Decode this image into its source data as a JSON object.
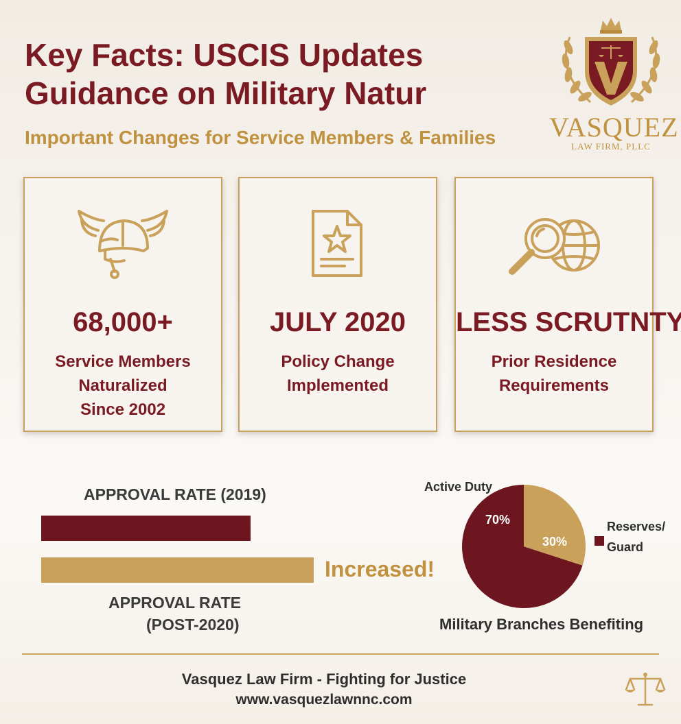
{
  "header": {
    "title_line1": "Key Facts: USCIS Updates",
    "title_line2": "Guidance on Military Natur",
    "subtitle": "Important Changes for Service Members & Families"
  },
  "logo": {
    "name": "VASQUEZ",
    "tagline": "LAW FIRM, PLLC"
  },
  "cards": [
    {
      "icon": "military-helmet-icon",
      "stat": "68,000+",
      "desc": [
        "Service Members",
        "Naturalized",
        "Since 2002"
      ]
    },
    {
      "icon": "document-star-icon",
      "stat": "JULY 2020",
      "desc": [
        "Policy Change",
        "Implemented"
      ]
    },
    {
      "icon": "magnifier-globe-icon",
      "stat": "LESS SCRUTNTY",
      "desc": [
        "Prior Residence",
        "Requirements"
      ]
    }
  ],
  "approval": {
    "label_2019": "APPROVAL RATE (2019)",
    "label_post_line1": "APPROVAL RATE",
    "label_post_line2": "(POST-2020)",
    "annotation": "Increased!",
    "colors": {
      "2019": "#6e1620",
      "post": "#c9a15a"
    }
  },
  "chart_data": {
    "type": "pie",
    "title": "Military Branches Benefiting",
    "slices": [
      {
        "label": "Active Duty",
        "value": 70,
        "display": "70%",
        "color": "#6e1620"
      },
      {
        "label": "Reserves/ Guard",
        "value": 30,
        "display": "30%",
        "color": "#c9a15a"
      }
    ],
    "legend_placement": "right"
  },
  "footer": {
    "line1": "Vasquez Law Firm - Fighting for Justice",
    "line2": "www.vasquezlawnnc.com"
  },
  "colors": {
    "maroon": "#7a1a22",
    "gold": "#c0913f"
  }
}
